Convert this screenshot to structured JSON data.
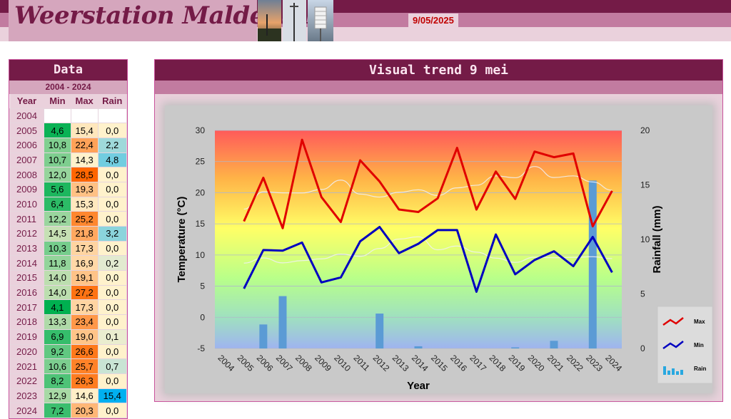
{
  "header": {
    "site_title": "Weerstation Malderen",
    "date": "9/05/2025"
  },
  "data_panel": {
    "title": "Data",
    "range": "2004 - 2024",
    "columns": [
      "Year",
      "Min",
      "Max",
      "Rain"
    ],
    "rows": [
      {
        "year": "2004",
        "min": "",
        "max": "",
        "rain": ""
      },
      {
        "year": "2005",
        "min": "4,6",
        "max": "15,4",
        "rain": "0,0"
      },
      {
        "year": "2006",
        "min": "10,8",
        "max": "22,4",
        "rain": "2,2"
      },
      {
        "year": "2007",
        "min": "10,7",
        "max": "14,3",
        "rain": "4,8"
      },
      {
        "year": "2008",
        "min": "12,0",
        "max": "28,5",
        "rain": "0,0"
      },
      {
        "year": "2009",
        "min": "5,6",
        "max": "19,3",
        "rain": "0,0"
      },
      {
        "year": "2010",
        "min": "6,4",
        "max": "15,3",
        "rain": "0,0"
      },
      {
        "year": "2011",
        "min": "12,2",
        "max": "25,2",
        "rain": "0,0"
      },
      {
        "year": "2012",
        "min": "14,5",
        "max": "21,8",
        "rain": "3,2"
      },
      {
        "year": "2013",
        "min": "10,3",
        "max": "17,3",
        "rain": "0,0"
      },
      {
        "year": "2014",
        "min": "11,8",
        "max": "16,9",
        "rain": "0,2"
      },
      {
        "year": "2015",
        "min": "14,0",
        "max": "19,1",
        "rain": "0,0"
      },
      {
        "year": "2016",
        "min": "14,0",
        "max": "27,2",
        "rain": "0,0"
      },
      {
        "year": "2017",
        "min": "4,1",
        "max": "17,3",
        "rain": "0,0"
      },
      {
        "year": "2018",
        "min": "13,3",
        "max": "23,4",
        "rain": "0,0"
      },
      {
        "year": "2019",
        "min": "6,9",
        "max": "19,0",
        "rain": "0,1"
      },
      {
        "year": "2020",
        "min": "9,2",
        "max": "26,6",
        "rain": "0,0"
      },
      {
        "year": "2021",
        "min": "10,6",
        "max": "25,7",
        "rain": "0,7"
      },
      {
        "year": "2022",
        "min": "8,2",
        "max": "26,3",
        "rain": "0,0"
      },
      {
        "year": "2023",
        "min": "12,9",
        "max": "14,6",
        "rain": "15,4"
      },
      {
        "year": "2024",
        "min": "7,2",
        "max": "20,3",
        "rain": "0,0"
      }
    ]
  },
  "colors": {
    "min_scale": [
      "#00b050",
      "#c6e0b4"
    ],
    "max_scale": [
      "#fff2cc",
      "#ff6600"
    ],
    "rain_scale": [
      "#fff2cc",
      "#00b0f0"
    ],
    "max_line": "#e00000",
    "min_line": "#0000c0",
    "rain_bar": "#5b9bd5"
  },
  "chart_panel": {
    "title": "Visual trend 9 mei"
  },
  "chart_data": {
    "type": "line",
    "x": [
      "2004",
      "2005",
      "2006",
      "2007",
      "2008",
      "2009",
      "2010",
      "2011",
      "2012",
      "2013",
      "2014",
      "2015",
      "2016",
      "2017",
      "2018",
      "2019",
      "2020",
      "2021",
      "2022",
      "2023",
      "2024"
    ],
    "series": [
      {
        "name": "Max",
        "axis": "left",
        "kind": "line",
        "values": [
          null,
          15.4,
          22.4,
          14.3,
          28.5,
          19.3,
          15.3,
          25.2,
          21.8,
          17.3,
          16.9,
          19.1,
          27.2,
          17.3,
          23.4,
          19.0,
          26.6,
          25.7,
          26.3,
          14.6,
          20.3
        ]
      },
      {
        "name": "Min",
        "axis": "left",
        "kind": "line",
        "values": [
          null,
          4.6,
          10.8,
          10.7,
          12.0,
          5.6,
          6.4,
          12.2,
          14.5,
          10.3,
          11.8,
          14.0,
          14.0,
          4.1,
          13.3,
          6.9,
          9.2,
          10.6,
          8.2,
          12.9,
          7.2
        ]
      },
      {
        "name": "Rain",
        "axis": "right",
        "kind": "bar",
        "values": [
          0,
          0,
          2.2,
          4.8,
          0,
          0,
          0,
          0,
          3.2,
          0,
          0.2,
          0,
          0,
          0,
          0,
          0.1,
          0,
          0.7,
          0,
          15.4,
          0
        ]
      }
    ],
    "xlabel": "Year",
    "ylabel": "Temperature (°C)",
    "y2label": "Rainfall (mm)",
    "ylim": [
      -5,
      30
    ],
    "y2lim": [
      0,
      20
    ],
    "yticks": [
      -5,
      0,
      5,
      10,
      15,
      20,
      25,
      30
    ],
    "y2ticks": [
      0,
      5,
      10,
      15,
      20
    ],
    "legend": [
      {
        "label": "Max",
        "icon": "red-line-icon"
      },
      {
        "label": "Min",
        "icon": "blue-line-icon"
      },
      {
        "label": "Rain",
        "icon": "bar-icon"
      }
    ],
    "legend_position": "right",
    "background": "gradient red-top to blue-bottom",
    "grid": true
  }
}
